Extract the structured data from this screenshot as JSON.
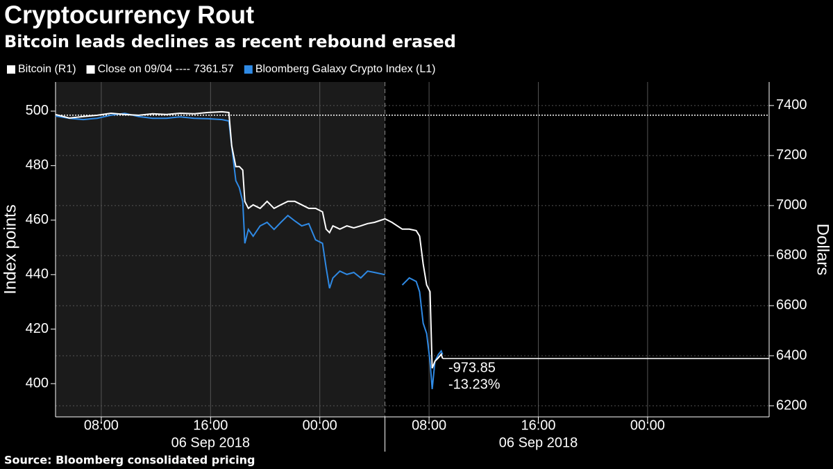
{
  "chart_data": {
    "type": "line",
    "title": "Cryptocurrency Rout",
    "subtitle": "Bitcoin leads declines as recent rebound erased",
    "ylabel": "Index points",
    "y2label": "Dollars",
    "source": "Source: Bloomberg consolidated pricing",
    "x": [
      4.65,
      5.66,
      6.68,
      7.7,
      8.71,
      9.73,
      10.74,
      11.76,
      12.77,
      13.79,
      14.81,
      15.82,
      16.84,
      17.34,
      17.55,
      17.85,
      18.11,
      18.36,
      18.51,
      18.77,
      19.12,
      19.63,
      20.14,
      20.65,
      21.15,
      21.66,
      22.17,
      22.68,
      23.19,
      23.69,
      24.2,
      24.46,
      24.71,
      24.96,
      25.47,
      25.98,
      26.49,
      27.0,
      27.5,
      28.01,
      28.77,
      29.28,
      30.04,
      30.55,
      31.06,
      31.31,
      31.57,
      31.82,
      32.07,
      32.23,
      32.43,
      32.68,
      32.89,
      32.99
    ],
    "series": [
      {
        "name": "Bitcoin (R1)",
        "color": "#ffffff",
        "axis": "y2",
        "values": [
          7364,
          7350,
          7356,
          7361,
          7369,
          7364,
          7361,
          7367,
          7364,
          7369,
          7367,
          7372,
          7375,
          7372,
          7239,
          7156,
          7156,
          7142,
          7017,
          6989,
          7003,
          6989,
          7017,
          6989,
          7003,
          7017,
          7017,
          7003,
          6989,
          6989,
          6975,
          6906,
          6892,
          6919,
          6906,
          6919,
          6911,
          6919,
          6928,
          6933,
          6947,
          6933,
          6906,
          6906,
          6900,
          6878,
          6767,
          6683,
          6656,
          6350,
          6378,
          6392,
          6406,
          6389
        ]
      },
      {
        "name": "Bloomberg Galaxy Crypto Index (L1)",
        "color": "#2f8ae5",
        "axis": "y",
        "values": [
          498.2,
          497.4,
          496.9,
          497.4,
          498.5,
          499.2,
          498.0,
          497.4,
          497.4,
          497.9,
          497.4,
          497.2,
          496.9,
          496.4,
          487.2,
          474.5,
          471.9,
          466.8,
          451.5,
          456.6,
          454.1,
          457.9,
          459.2,
          456.6,
          459.2,
          461.7,
          459.7,
          457.9,
          458.7,
          452.8,
          451.5,
          442.6,
          435.0,
          438.8,
          441.3,
          440.1,
          440.8,
          438.8,
          441.3,
          440.8,
          440.0,
          null,
          436.2,
          438.8,
          437.5,
          433.7,
          422.2,
          418.4,
          408.2,
          398.0,
          408.2,
          410.7,
          412.0,
          410.7
        ]
      }
    ],
    "reference_lines": [
      {
        "name": "Close on 09/04 ----",
        "value": 7361.57,
        "axis": "y2",
        "color": "#ffffff"
      }
    ],
    "annotations": [
      {
        "value": -973.85
      },
      {
        "value": -13.23,
        "label": "-13.23%"
      }
    ],
    "xlim": [
      4.65,
      56.9
    ],
    "xticks": [
      {
        "value": 8,
        "label": "08:00"
      },
      {
        "value": 16,
        "label": "16:00"
      },
      {
        "value": 24,
        "label": "00:00"
      },
      {
        "value": 32,
        "label": "08:00"
      },
      {
        "value": 40,
        "label": "16:00"
      },
      {
        "value": 48,
        "label": "00:00"
      }
    ],
    "x_groups": [
      {
        "value": 16,
        "label": "06 Sep 2018"
      },
      {
        "value": 40,
        "label": "06 Sep 2018"
      }
    ],
    "shade_xlim": [
      4.65,
      28.77
    ],
    "ylim": [
      387.8,
      510.7
    ],
    "yticks": [
      400,
      420,
      440,
      460,
      480,
      500
    ],
    "y2lim": [
      6155.6,
      7494
    ],
    "y2ticks": [
      6200,
      6400,
      6600,
      6800,
      7000,
      7200,
      7400
    ],
    "grid": true
  }
}
